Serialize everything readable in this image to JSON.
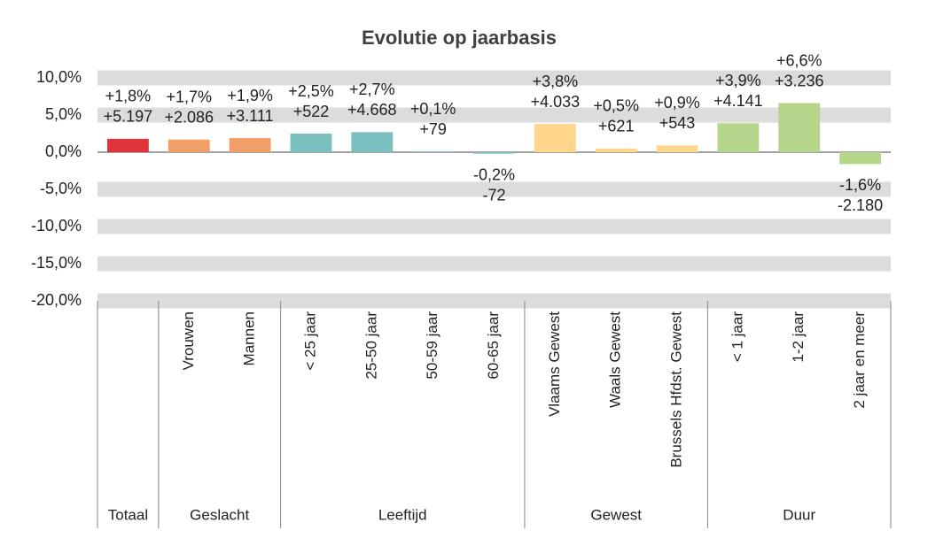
{
  "chart_data": {
    "type": "bar",
    "title": "Evolutie op jaarbasis",
    "categories": [
      null,
      "Vrouwen",
      "Mannen",
      "< 25 jaar",
      "25-50 jaar",
      "50-59 jaar",
      "60-65 jaar",
      "Vlaams Gewest",
      "Waals Gewest",
      "Brussels Hfdst. Gewest",
      "< 1 jaar",
      "1-2 jaar",
      "2 jaar en meer"
    ],
    "values": [
      1.8,
      1.7,
      1.9,
      2.5,
      2.7,
      0.1,
      -0.2,
      3.8,
      0.5,
      0.9,
      3.9,
      6.6,
      -1.6
    ],
    "value_labels": [
      "+1,8%",
      "+1,7%",
      "+1,9%",
      "+2,5%",
      "+2,7%",
      "+0,1%",
      "-0,2%",
      "+3,8%",
      "+0,5%",
      "+0,9%",
      "+3,9%",
      "+6,6%",
      "-1,6%"
    ],
    "change_labels": [
      "+5.197",
      "+2.086",
      "+3.111",
      "+522",
      "+4.668",
      "+79",
      "-72",
      "+4.033",
      "+621",
      "+543",
      "+4.141",
      "+3.236",
      "-2.180"
    ],
    "colors": [
      "#e0343a",
      "#f0a066",
      "#f0a066",
      "#7bbfbf",
      "#7bbfbf",
      "#7bbfbf",
      "#7bbfbf",
      "#ffd68c",
      "#ffd68c",
      "#ffd68c",
      "#b5d68a",
      "#b5d68a",
      "#b5d68a"
    ],
    "groups": [
      {
        "name": "Totaal",
        "size": 1
      },
      {
        "name": "Geslacht",
        "size": 2
      },
      {
        "name": "Leeftijd",
        "size": 4
      },
      {
        "name": "Gewest",
        "size": 3
      },
      {
        "name": "Duur",
        "size": 3
      }
    ],
    "ylim": [
      -20,
      10
    ],
    "yticks": [
      {
        "value": 10,
        "label": "10,0%"
      },
      {
        "value": 5,
        "label": "5,0%"
      },
      {
        "value": 0,
        "label": "0,0%"
      },
      {
        "value": -5,
        "label": "-5,0%"
      },
      {
        "value": -10,
        "label": "-10,0%"
      },
      {
        "value": -15,
        "label": "-15,0%"
      },
      {
        "value": -20,
        "label": "-20,0%"
      }
    ],
    "grid": true
  }
}
